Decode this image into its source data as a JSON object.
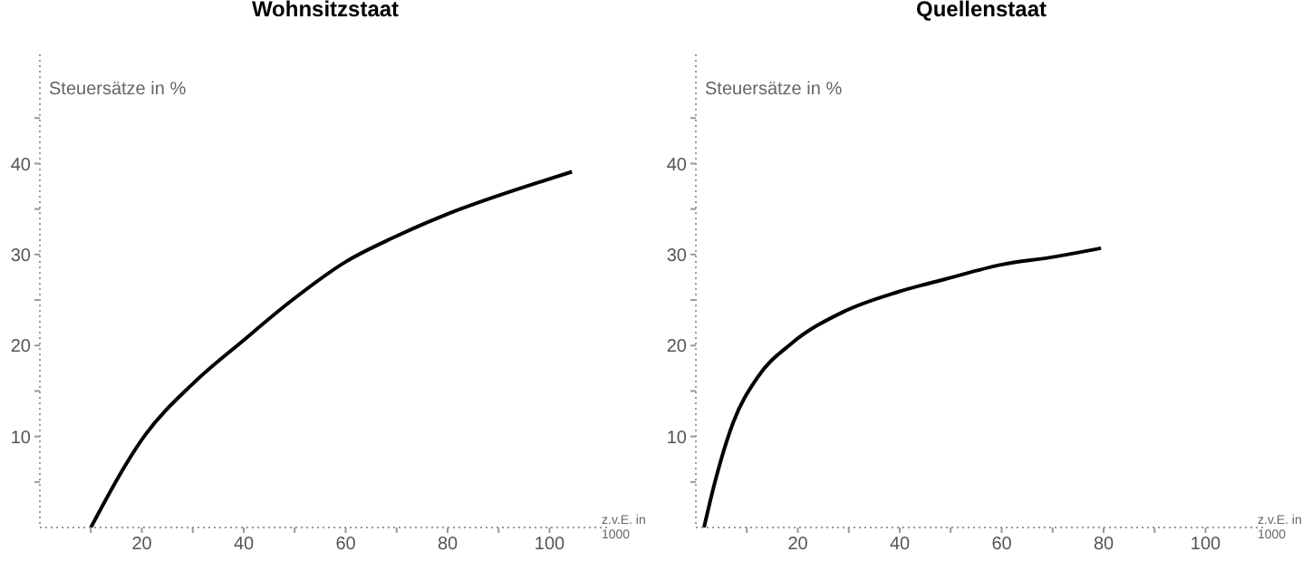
{
  "chart_data": [
    {
      "type": "line",
      "title": "Wohnsitzstaat",
      "xlabel": "z.v.E. in 1000",
      "ylabel": "Steuersätze in %",
      "xlim": [
        0,
        112
      ],
      "ylim": [
        0,
        52
      ],
      "xticks": [
        {
          "value": 10,
          "label": null
        },
        20,
        {
          "value": 30,
          "label": null
        },
        40,
        {
          "value": 50,
          "label": null
        },
        60,
        {
          "value": 70,
          "label": null
        },
        80,
        {
          "value": 90,
          "label": null
        },
        100
      ],
      "yticks": [
        {
          "value": 5,
          "label": null
        },
        10,
        {
          "value": 15,
          "label": null
        },
        20,
        {
          "value": 25,
          "label": null
        },
        30,
        {
          "value": 35,
          "label": null
        },
        40,
        {
          "value": 45,
          "label": null
        }
      ],
      "grid": false,
      "legend": false,
      "marker": "none",
      "line_style": "solid",
      "series": [
        {
          "color": "#000000",
          "x": [
            10,
            20.7,
            30.2,
            39.8,
            49.3,
            60,
            69.5,
            80.2,
            99.3,
            104.4
          ],
          "values": [
            0,
            10.2,
            15.9,
            20.5,
            24.9,
            29.2,
            31.9,
            34.5,
            38.2,
            39.1
          ]
        }
      ]
    },
    {
      "type": "line",
      "title": "Quellenstaat",
      "xlabel": "z.v.E. in 1000",
      "ylabel": "Steuersätze in %",
      "xlim": [
        0,
        112
      ],
      "ylim": [
        0,
        52
      ],
      "xticks": [
        {
          "value": 10,
          "label": null
        },
        20,
        {
          "value": 30,
          "label": null
        },
        40,
        {
          "value": 50,
          "label": null
        },
        60,
        {
          "value": 70,
          "label": null
        },
        80,
        {
          "value": 90,
          "label": null
        },
        100
      ],
      "yticks": [
        {
          "value": 5,
          "label": null
        },
        10,
        {
          "value": 15,
          "label": null
        },
        20,
        {
          "value": 25,
          "label": null
        },
        30,
        {
          "value": 35,
          "label": null
        },
        40,
        {
          "value": 45,
          "label": null
        }
      ],
      "grid": false,
      "legend": false,
      "marker": "none",
      "line_style": "solid",
      "series": [
        {
          "color": "#000000",
          "x": [
            1.6,
            3.7,
            7.3,
            12.1,
            18.7,
            28.9,
            39.7,
            48.9,
            60.1,
            69.7,
            79.5
          ],
          "values": [
            0,
            4.9,
            11.5,
            16.5,
            20.2,
            23.7,
            25.9,
            27.3,
            28.9,
            29.7,
            30.7
          ]
        }
      ]
    }
  ]
}
